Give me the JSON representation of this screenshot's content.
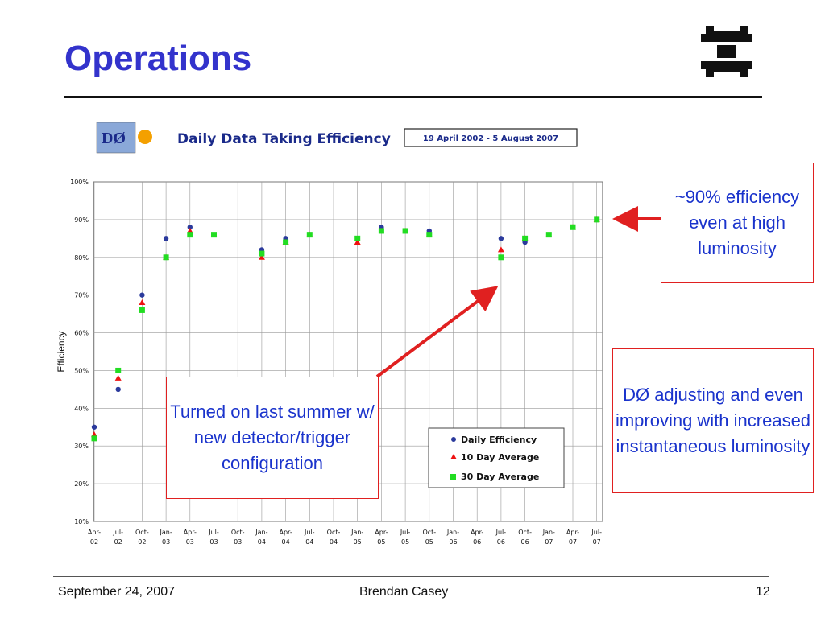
{
  "slide": {
    "title": "Operations",
    "footer_left": "September 24, 2007",
    "footer_center": "Brendan Casey",
    "footer_right": "12"
  },
  "callouts": {
    "top_right": "~90% efficiency even at high luminosity",
    "middle_right": "DØ adjusting and even improving with increased instantaneous luminosity",
    "middle_left": "Turned on last summer w/ new detector/trigger configuration"
  },
  "colors": {
    "title": "#3333cc",
    "callout_text": "#1a33cc",
    "callout_border": "#e02020",
    "arrow": "#e02020",
    "daily": "#2b3a9c",
    "ten_day": "#ee1111",
    "thirty_day": "#22dd22"
  },
  "chart_data": {
    "type": "scatter",
    "title": "Daily Data Taking Efficiency",
    "subtitle": "19 April 2002 - 5 August 2007",
    "logo_text": "DØ",
    "ylabel": "Efficiency",
    "xlabel": "",
    "ylim": [
      10,
      100
    ],
    "yticks": [
      "10%",
      "20%",
      "30%",
      "40%",
      "50%",
      "60%",
      "70%",
      "80%",
      "90%",
      "100%"
    ],
    "xtick_labels": [
      [
        "Apr-",
        "02"
      ],
      [
        "Jul-",
        "02"
      ],
      [
        "Oct-",
        "02"
      ],
      [
        "Jan-",
        "03"
      ],
      [
        "Apr-",
        "03"
      ],
      [
        "Jul-",
        "03"
      ],
      [
        "Oct-",
        "03"
      ],
      [
        "Jan-",
        "04"
      ],
      [
        "Apr-",
        "04"
      ],
      [
        "Jul-",
        "04"
      ],
      [
        "Oct-",
        "04"
      ],
      [
        "Jan-",
        "05"
      ],
      [
        "Apr-",
        "05"
      ],
      [
        "Jul-",
        "05"
      ],
      [
        "Oct-",
        "05"
      ],
      [
        "Jan-",
        "06"
      ],
      [
        "Apr-",
        "06"
      ],
      [
        "Jul-",
        "06"
      ],
      [
        "Oct-",
        "06"
      ],
      [
        "Jan-",
        "07"
      ],
      [
        "Apr-",
        "07"
      ],
      [
        "Jul-",
        "07"
      ]
    ],
    "grid": true,
    "legend_position": "bottom-right",
    "series": [
      {
        "name": "Daily Efficiency",
        "marker": "circle",
        "x": [
          "Apr-02",
          "Jul-02",
          "Oct-02",
          "Jan-03",
          "Apr-03",
          "Jul-03",
          "Jan-04",
          "Apr-04",
          "Jul-04",
          "Jan-05",
          "Apr-05",
          "Jul-05",
          "Oct-05",
          "Jul-06",
          "Oct-06",
          "Jan-07",
          "Apr-07",
          "Jul-07"
        ],
        "values": [
          35,
          45,
          70,
          85,
          88,
          86,
          82,
          85,
          86,
          85,
          88,
          87,
          87,
          85,
          84,
          86,
          88,
          90
        ]
      },
      {
        "name": "10 Day Average",
        "marker": "triangle",
        "x": [
          "Apr-02",
          "Jul-02",
          "Oct-02",
          "Jan-03",
          "Apr-03",
          "Jul-03",
          "Jan-04",
          "Apr-04",
          "Jul-04",
          "Jan-05",
          "Apr-05",
          "Jul-05",
          "Oct-05",
          "Jul-06",
          "Oct-06",
          "Jan-07",
          "Apr-07",
          "Jul-07"
        ],
        "values": [
          33,
          48,
          68,
          80,
          87,
          86,
          80,
          84,
          86,
          84,
          87,
          87,
          86,
          82,
          85,
          86,
          88,
          90
        ]
      },
      {
        "name": "30 Day Average",
        "marker": "square",
        "x": [
          "Apr-02",
          "Jul-02",
          "Oct-02",
          "Jan-03",
          "Apr-03",
          "Jul-03",
          "Jan-04",
          "Apr-04",
          "Jul-04",
          "Jan-05",
          "Apr-05",
          "Jul-05",
          "Oct-05",
          "Jul-06",
          "Oct-06",
          "Jan-07",
          "Apr-07",
          "Jul-07"
        ],
        "values": [
          32,
          50,
          66,
          80,
          86,
          86,
          81,
          84,
          86,
          85,
          87,
          87,
          86,
          80,
          85,
          86,
          88,
          90
        ]
      }
    ]
  }
}
